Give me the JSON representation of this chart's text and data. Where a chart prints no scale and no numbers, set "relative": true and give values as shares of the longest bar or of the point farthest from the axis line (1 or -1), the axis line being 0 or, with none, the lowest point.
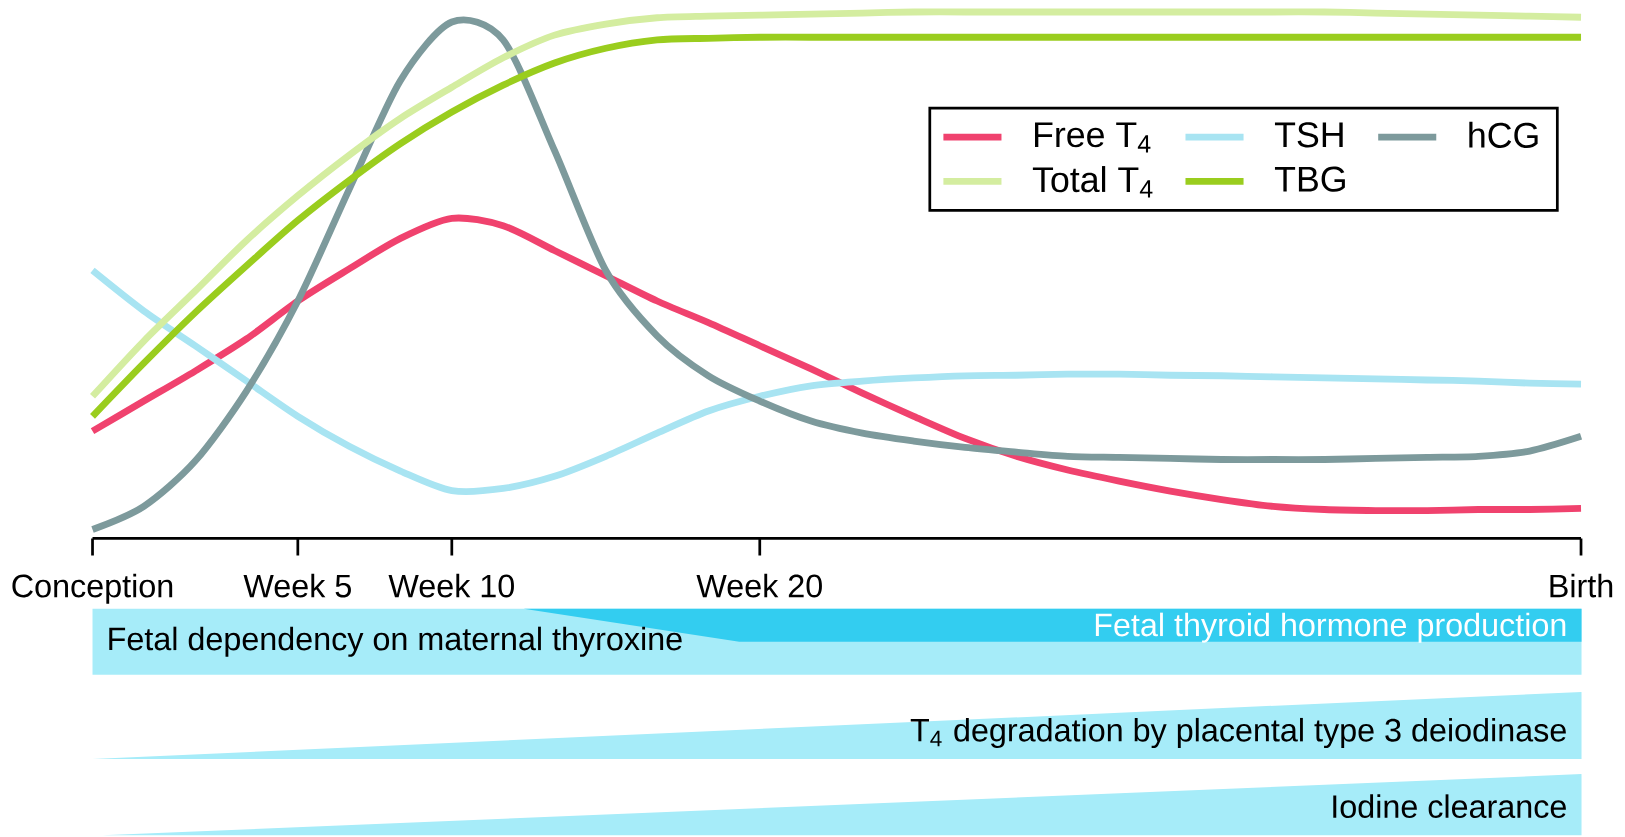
{
  "chart_data": {
    "type": "line",
    "relative": true,
    "categories": [
      "Conception",
      null,
      null,
      null,
      "Week 5",
      null,
      null,
      "Week 10",
      null,
      null,
      null,
      null,
      null,
      "Week 20",
      null,
      null,
      null,
      null,
      null,
      null,
      null,
      null,
      null,
      null,
      null,
      null,
      null,
      null,
      null,
      "Birth"
    ],
    "series": [
      {
        "name": "Free T$_{4}$",
        "color": "#f0426e",
        "values": [
          0.204,
          0.261,
          0.318,
          0.379,
          0.451,
          0.512,
          0.57,
          0.608,
          0.594,
          0.547,
          0.499,
          0.451,
          0.41,
          0.366,
          0.322,
          0.276,
          0.232,
          0.19,
          0.156,
          0.13,
          0.109,
          0.09,
          0.074,
          0.061,
          0.055,
          0.053,
          0.053,
          0.055,
          0.055,
          0.057
        ]
      },
      {
        "name": "TSH",
        "color": "#a8e4f2",
        "values": [
          0.509,
          0.432,
          0.366,
          0.299,
          0.232,
          0.175,
          0.128,
          0.091,
          0.095,
          0.118,
          0.156,
          0.2,
          0.242,
          0.27,
          0.29,
          0.299,
          0.305,
          0.309,
          0.31,
          0.312,
          0.312,
          0.31,
          0.309,
          0.307,
          0.305,
          0.303,
          0.301,
          0.299,
          0.295,
          0.293
        ]
      },
      {
        "name": "hCG",
        "color": "#7d9a9c",
        "values": [
          0.017,
          0.061,
          0.147,
          0.28,
          0.451,
          0.663,
          0.87,
          0.981,
          0.947,
          0.737,
          0.509,
          0.385,
          0.309,
          0.261,
          0.223,
          0.2,
          0.185,
          0.173,
          0.164,
          0.156,
          0.154,
          0.152,
          0.15,
          0.15,
          0.15,
          0.152,
          0.154,
          0.156,
          0.166,
          0.194
        ]
      },
      {
        "name": "Total T$_{4}$",
        "color": "#d4eda0",
        "values": [
          0.27,
          0.375,
          0.47,
          0.566,
          0.651,
          0.728,
          0.798,
          0.857,
          0.913,
          0.956,
          0.977,
          0.989,
          0.992,
          0.994,
          0.996,
          0.998,
          1,
          1,
          1,
          1,
          1,
          1,
          1,
          1,
          1,
          0.998,
          0.996,
          0.994,
          0.992,
          0.99
        ]
      },
      {
        "name": "TBG",
        "color": "#9acd1e",
        "values": [
          0.232,
          0.333,
          0.429,
          0.518,
          0.604,
          0.68,
          0.75,
          0.81,
          0.861,
          0.903,
          0.931,
          0.947,
          0.95,
          0.952,
          0.952,
          0.952,
          0.952,
          0.952,
          0.952,
          0.952,
          0.952,
          0.952,
          0.952,
          0.952,
          0.952,
          0.952,
          0.952,
          0.952,
          0.952,
          0.952
        ]
      }
    ],
    "legend": "top right",
    "grid": false,
    "marker": "none",
    "line_style": "solid",
    "annotations": [
      "Fetal dependency on maternal thyroxine",
      "Fetal thyroid hormone production",
      "T$_{4}$ degradation by placental type 3 deiodinase",
      "Iodine clearance"
    ]
  }
}
